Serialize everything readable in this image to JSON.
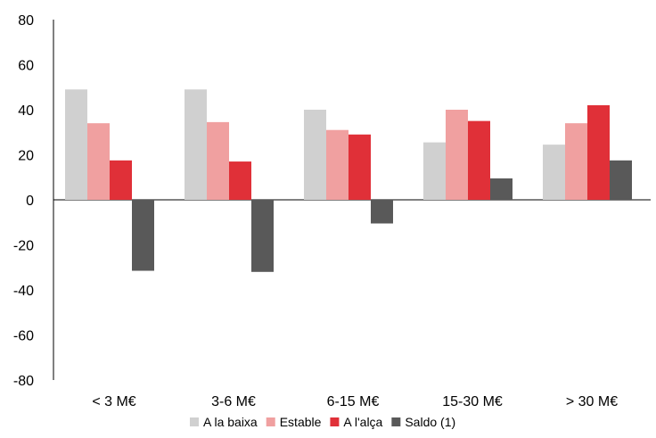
{
  "chart_data": {
    "type": "bar",
    "title": "",
    "xlabel": "",
    "ylabel": "",
    "categories": [
      "< 3 M€",
      "3-6 M€",
      "6-15 M€",
      "15-30 M€",
      "> 30 M€"
    ],
    "ylim": [
      -80,
      80
    ],
    "yticks": [
      -80,
      -60,
      -40,
      -20,
      0,
      20,
      40,
      60,
      80
    ],
    "grid": false,
    "legend_position": "bottom",
    "series": [
      {
        "name": "A la baixa",
        "color": "#d0d0d0",
        "values": [
          49,
          49,
          40,
          25.5,
          24.5
        ]
      },
      {
        "name": "Estable",
        "color": "#f0a0a0",
        "values": [
          34,
          34.5,
          31,
          40,
          34
        ]
      },
      {
        "name": "A l'alça",
        "color": "#e03038",
        "values": [
          17.5,
          17,
          29,
          35,
          42
        ]
      },
      {
        "name": "Saldo (1)",
        "color": "#595959",
        "values": [
          -31.5,
          -32,
          -10.5,
          9.5,
          17.5
        ]
      }
    ]
  }
}
